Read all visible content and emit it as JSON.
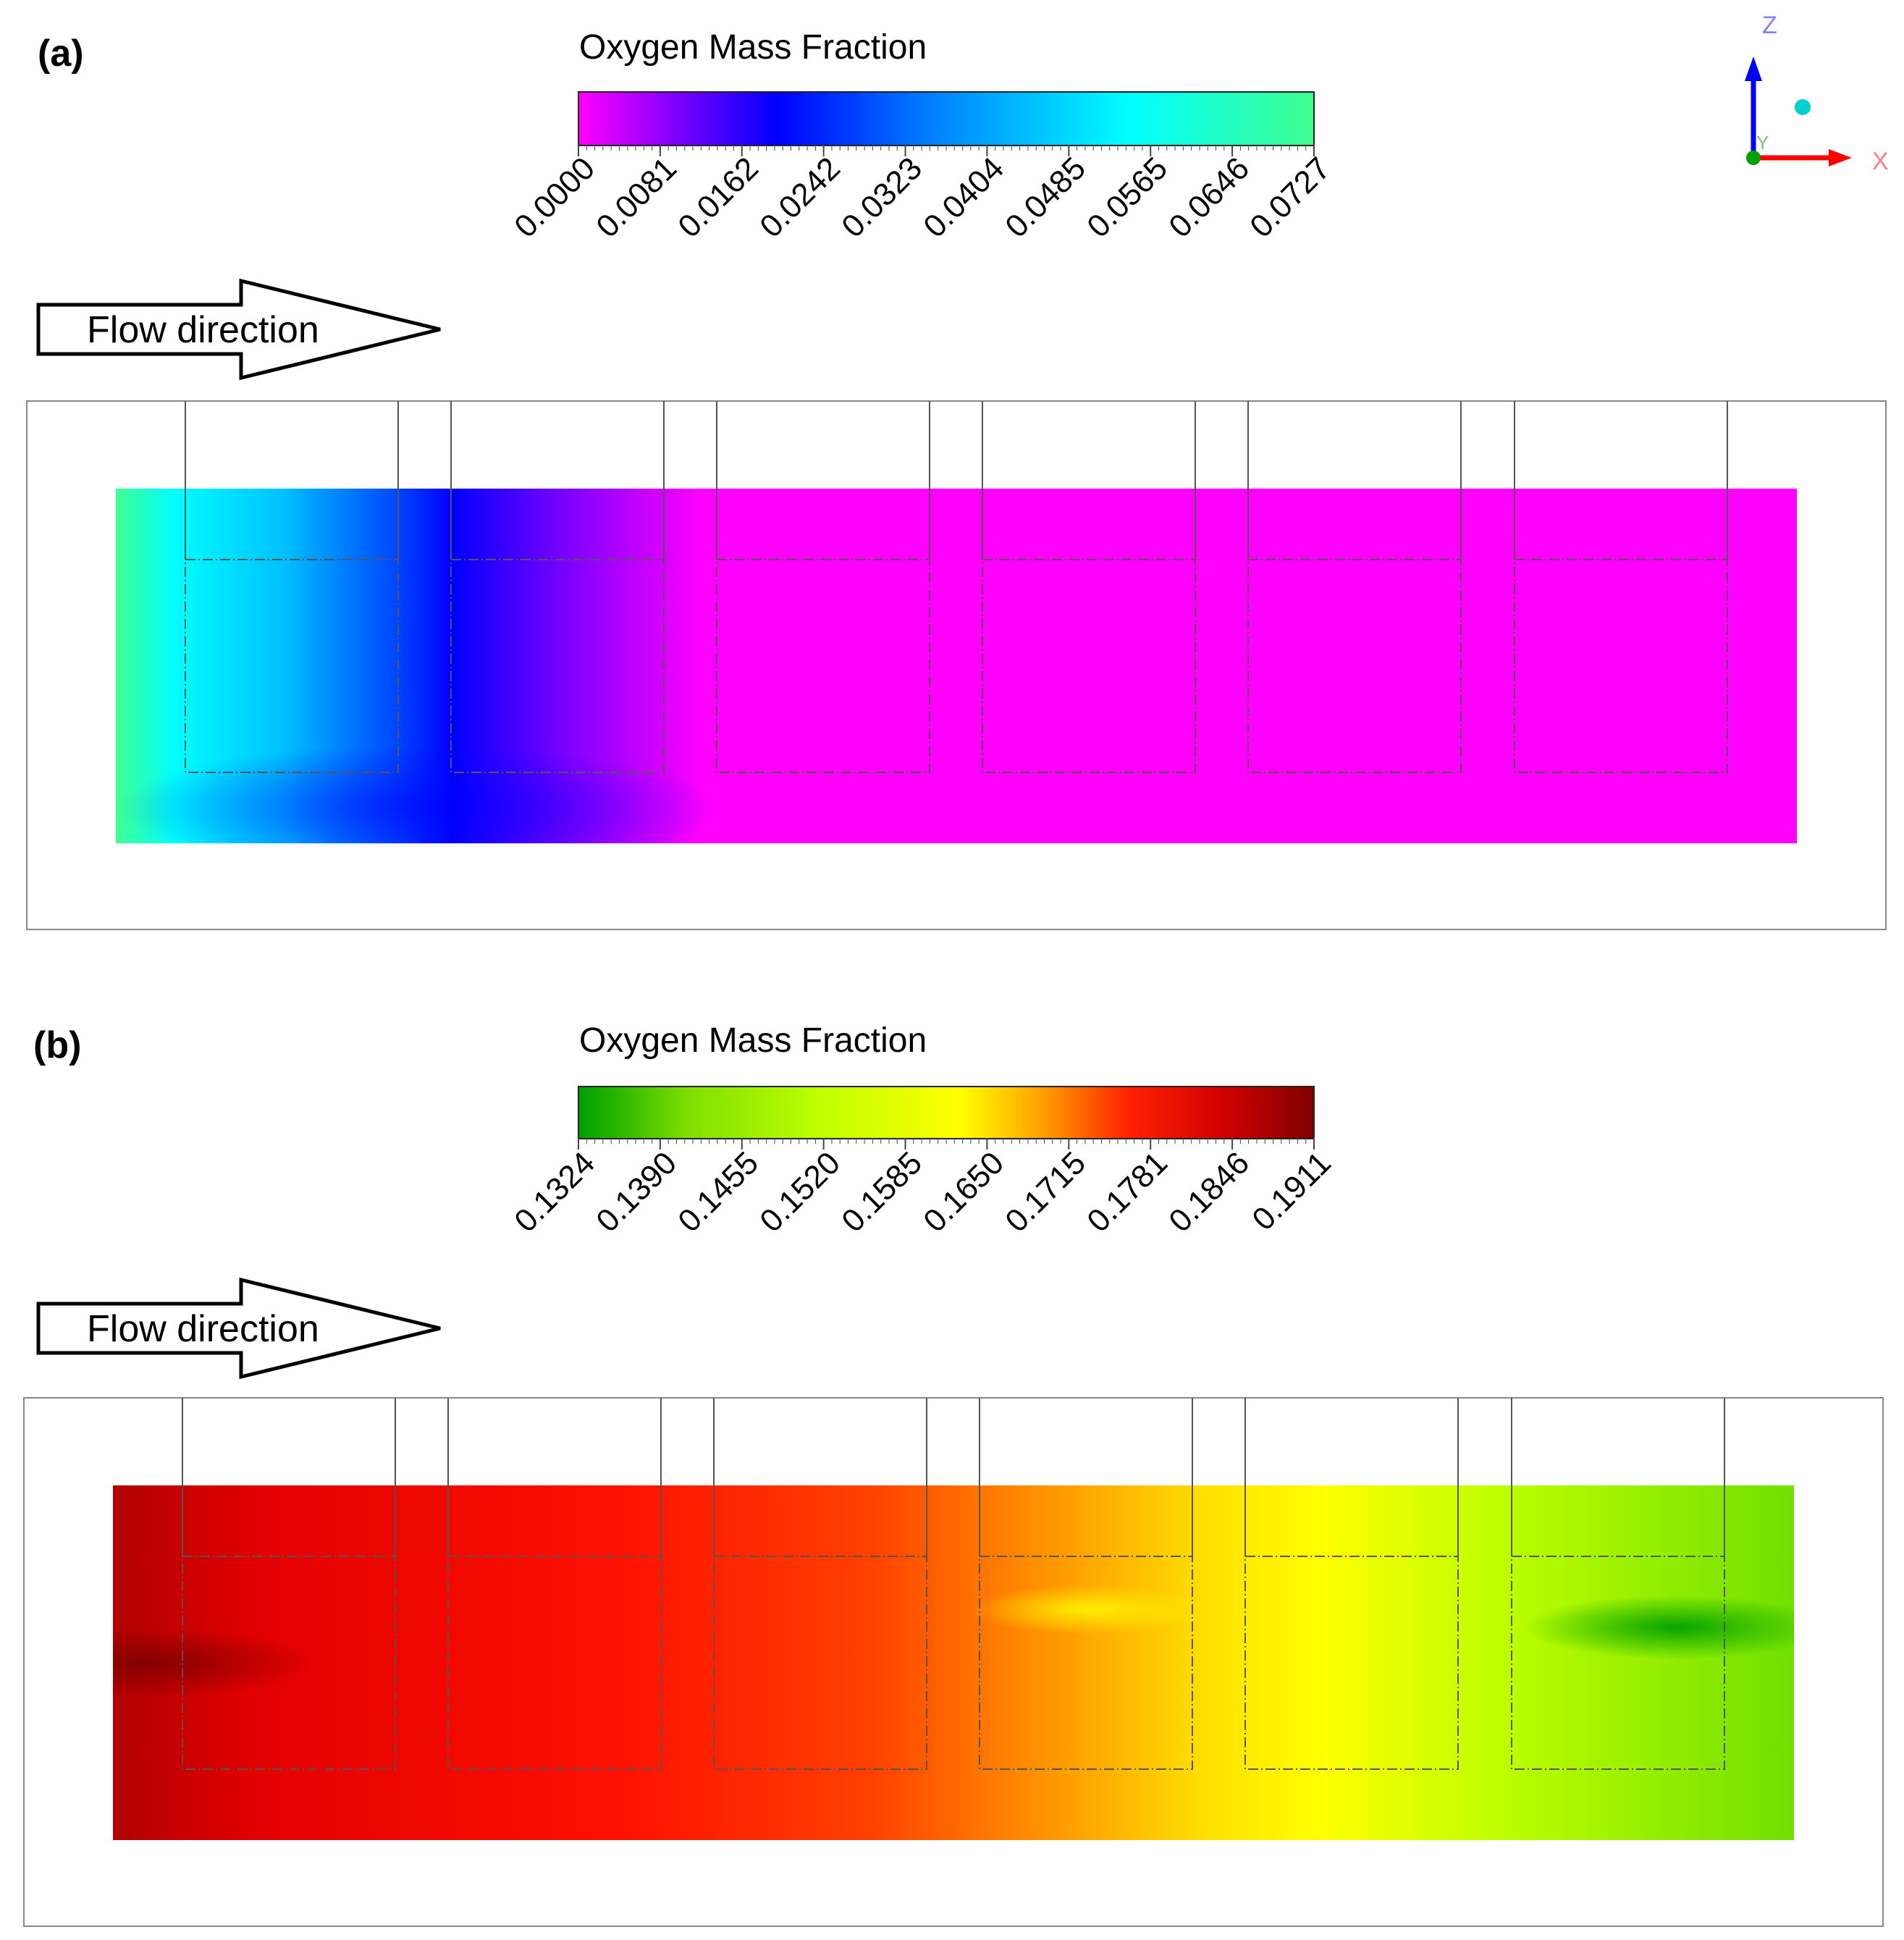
{
  "panels": [
    {
      "id": "a",
      "label": "(a)",
      "colorbar": {
        "title": "Oxygen Mass Fraction",
        "min": 0.0,
        "max": 0.0727,
        "ticks": [
          "0.0000",
          "0.0081",
          "0.0162",
          "0.0242",
          "0.0323",
          "0.0404",
          "0.0485",
          "0.0565",
          "0.0646",
          "0.0727"
        ],
        "colormap": [
          "#ff00ff",
          "#8000ff",
          "#0000ff",
          "#0080ff",
          "#00ffff",
          "#40ff90"
        ]
      },
      "flow_label": "Flow direction"
    },
    {
      "id": "b",
      "label": "(b)",
      "colorbar": {
        "title": "Oxygen Mass Fraction",
        "min": 0.1324,
        "max": 0.1911,
        "ticks": [
          "0.1324",
          "0.1390",
          "0.1455",
          "0.1520",
          "0.1585",
          "0.1650",
          "0.1715",
          "0.1781",
          "0.1846",
          "0.1911"
        ],
        "colormap": [
          "#00a000",
          "#b0ff00",
          "#ffff00",
          "#ff8000",
          "#ff0000",
          "#800000"
        ]
      },
      "flow_label": "Flow direction"
    }
  ],
  "axes_triad": {
    "z": "Z",
    "x": "X",
    "y": "Y",
    "colors": {
      "z": "#0000ff",
      "x": "#ff0000",
      "y": "#00a000"
    }
  }
}
